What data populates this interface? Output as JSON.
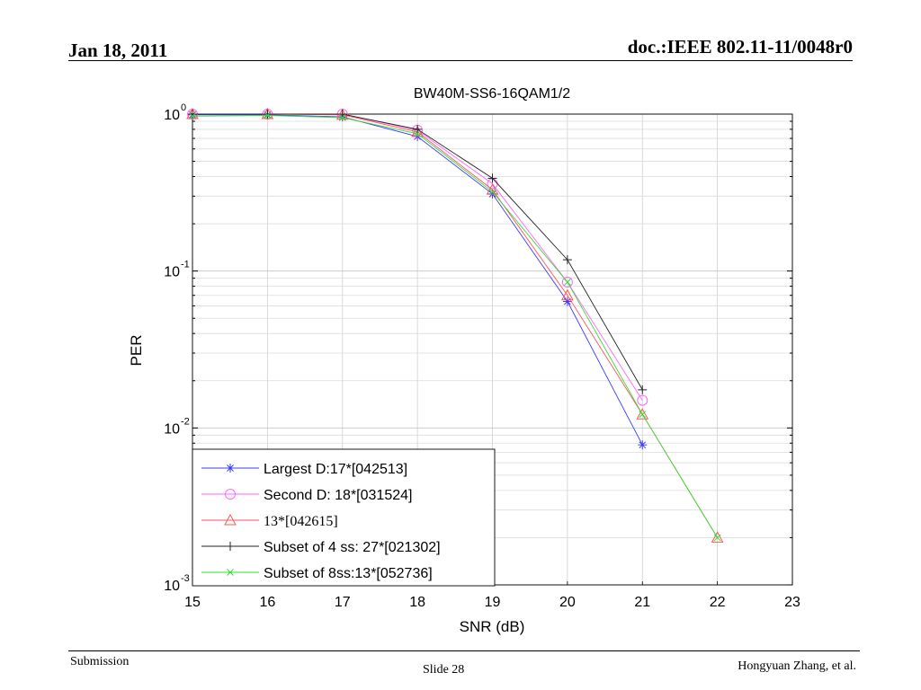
{
  "slide": {
    "date": "Jan 18, 2011",
    "doc_id": "doc.:IEEE 802.11-11/0048r0",
    "footer_left": "Submission",
    "footer_center": "Slide 28",
    "footer_right": "Hongyuan Zhang, et al."
  },
  "chart_data": {
    "type": "line",
    "title": "BW40M-SS6-16QAM1/2",
    "xlabel": "SNR (dB)",
    "ylabel": "PER",
    "xlim": [
      15,
      23
    ],
    "ylim": [
      0.001,
      1
    ],
    "yscale": "log",
    "x_ticks": [
      "15",
      "16",
      "17",
      "18",
      "19",
      "20",
      "21",
      "22",
      "23"
    ],
    "y_ticks": [
      {
        "base": "10",
        "exp": "0"
      },
      {
        "base": "10",
        "exp": "-1"
      },
      {
        "base": "10",
        "exp": "-2"
      },
      {
        "base": "10",
        "exp": "-3"
      }
    ],
    "grid": true,
    "legend_position": "bottom-left",
    "series": [
      {
        "name": "Largest D:17*[042513]",
        "color": "#3b3bff",
        "marker": "star",
        "x": [
          15,
          16,
          17,
          18,
          19,
          20,
          21
        ],
        "y": [
          0.99,
          0.99,
          0.96,
          0.72,
          0.31,
          0.064,
          0.0078
        ]
      },
      {
        "name": "Second D: 18*[031524]",
        "color": "#ff66ff",
        "marker": "circle",
        "x": [
          15,
          16,
          17,
          18,
          19,
          20,
          21
        ],
        "y": [
          1.0,
          1.0,
          1.0,
          0.79,
          0.36,
          0.085,
          0.015
        ]
      },
      {
        "name": "13*[042615]",
        "color": "#ff5555",
        "marker": "triangle",
        "x": [
          15,
          16,
          17,
          18,
          19,
          20,
          21,
          22
        ],
        "y": [
          1.0,
          1.0,
          0.99,
          0.77,
          0.33,
          0.07,
          0.0122,
          0.002
        ]
      },
      {
        "name": "Subset of 4 ss: 27*[021302]",
        "color": "#222222",
        "marker": "plus",
        "x": [
          15,
          16,
          17,
          18,
          19,
          20,
          21
        ],
        "y": [
          1.0,
          1.0,
          1.0,
          0.8,
          0.39,
          0.118,
          0.0175
        ]
      },
      {
        "name": "Subset of 8ss:13*[052736]",
        "color": "#33dd33",
        "marker": "x",
        "x": [
          15,
          16,
          17,
          18,
          19,
          20,
          21,
          22
        ],
        "y": [
          0.97,
          0.98,
          0.95,
          0.75,
          0.32,
          0.085,
          0.0122,
          0.002
        ]
      }
    ]
  }
}
